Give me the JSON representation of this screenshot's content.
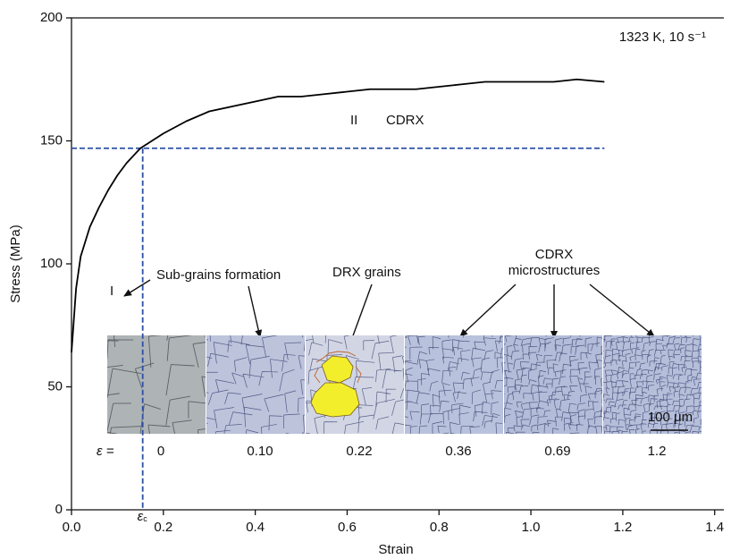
{
  "chart_data": {
    "type": "line",
    "x_label": "Strain",
    "y_label": "Stress (MPa)",
    "annotation_condition": "1323 K, 10 s⁻¹",
    "region_1": "I",
    "region_2": "II",
    "region_2_mechanism": "CDRX",
    "label_subgrains": "Sub-grains formation",
    "label_drx": "DRX grains",
    "label_cdrx": [
      "CDRX",
      "microstructures"
    ],
    "strain_symbol": "ε =",
    "critical_strain_symbol": "ε",
    "critical_strain_subscript": "c",
    "scale_bar": "100 μm",
    "inset_strains": [
      "0",
      "0.10",
      "0.22",
      "0.36",
      "0.69",
      "1.2"
    ],
    "x": [
      0.0,
      0.01,
      0.02,
      0.04,
      0.06,
      0.08,
      0.1,
      0.12,
      0.15,
      0.2,
      0.25,
      0.3,
      0.35,
      0.4,
      0.45,
      0.5,
      0.55,
      0.6,
      0.65,
      0.7,
      0.75,
      0.8,
      0.85,
      0.9,
      0.95,
      1.0,
      1.05,
      1.1,
      1.16
    ],
    "values": [
      64,
      90,
      103,
      115,
      123,
      130,
      136,
      141,
      147,
      153,
      158,
      162,
      164,
      166,
      168,
      168,
      169,
      170,
      171,
      171,
      171,
      172,
      173,
      174,
      174,
      174,
      174,
      175,
      174
    ],
    "color": "#000000",
    "critical_strain": 0.155,
    "critical_stress": 147,
    "critical_color": "#2b4fa3",
    "xlim": [
      0,
      1.42
    ],
    "ylim": [
      0,
      200
    ],
    "xticks": [
      {
        "value": 0,
        "label": "0.0"
      },
      0.2,
      0.4,
      0.6,
      0.8,
      {
        "value": 1,
        "label": "1.0"
      },
      1.2,
      1.4
    ],
    "yticks": [
      0,
      50,
      100,
      150,
      200
    ]
  }
}
